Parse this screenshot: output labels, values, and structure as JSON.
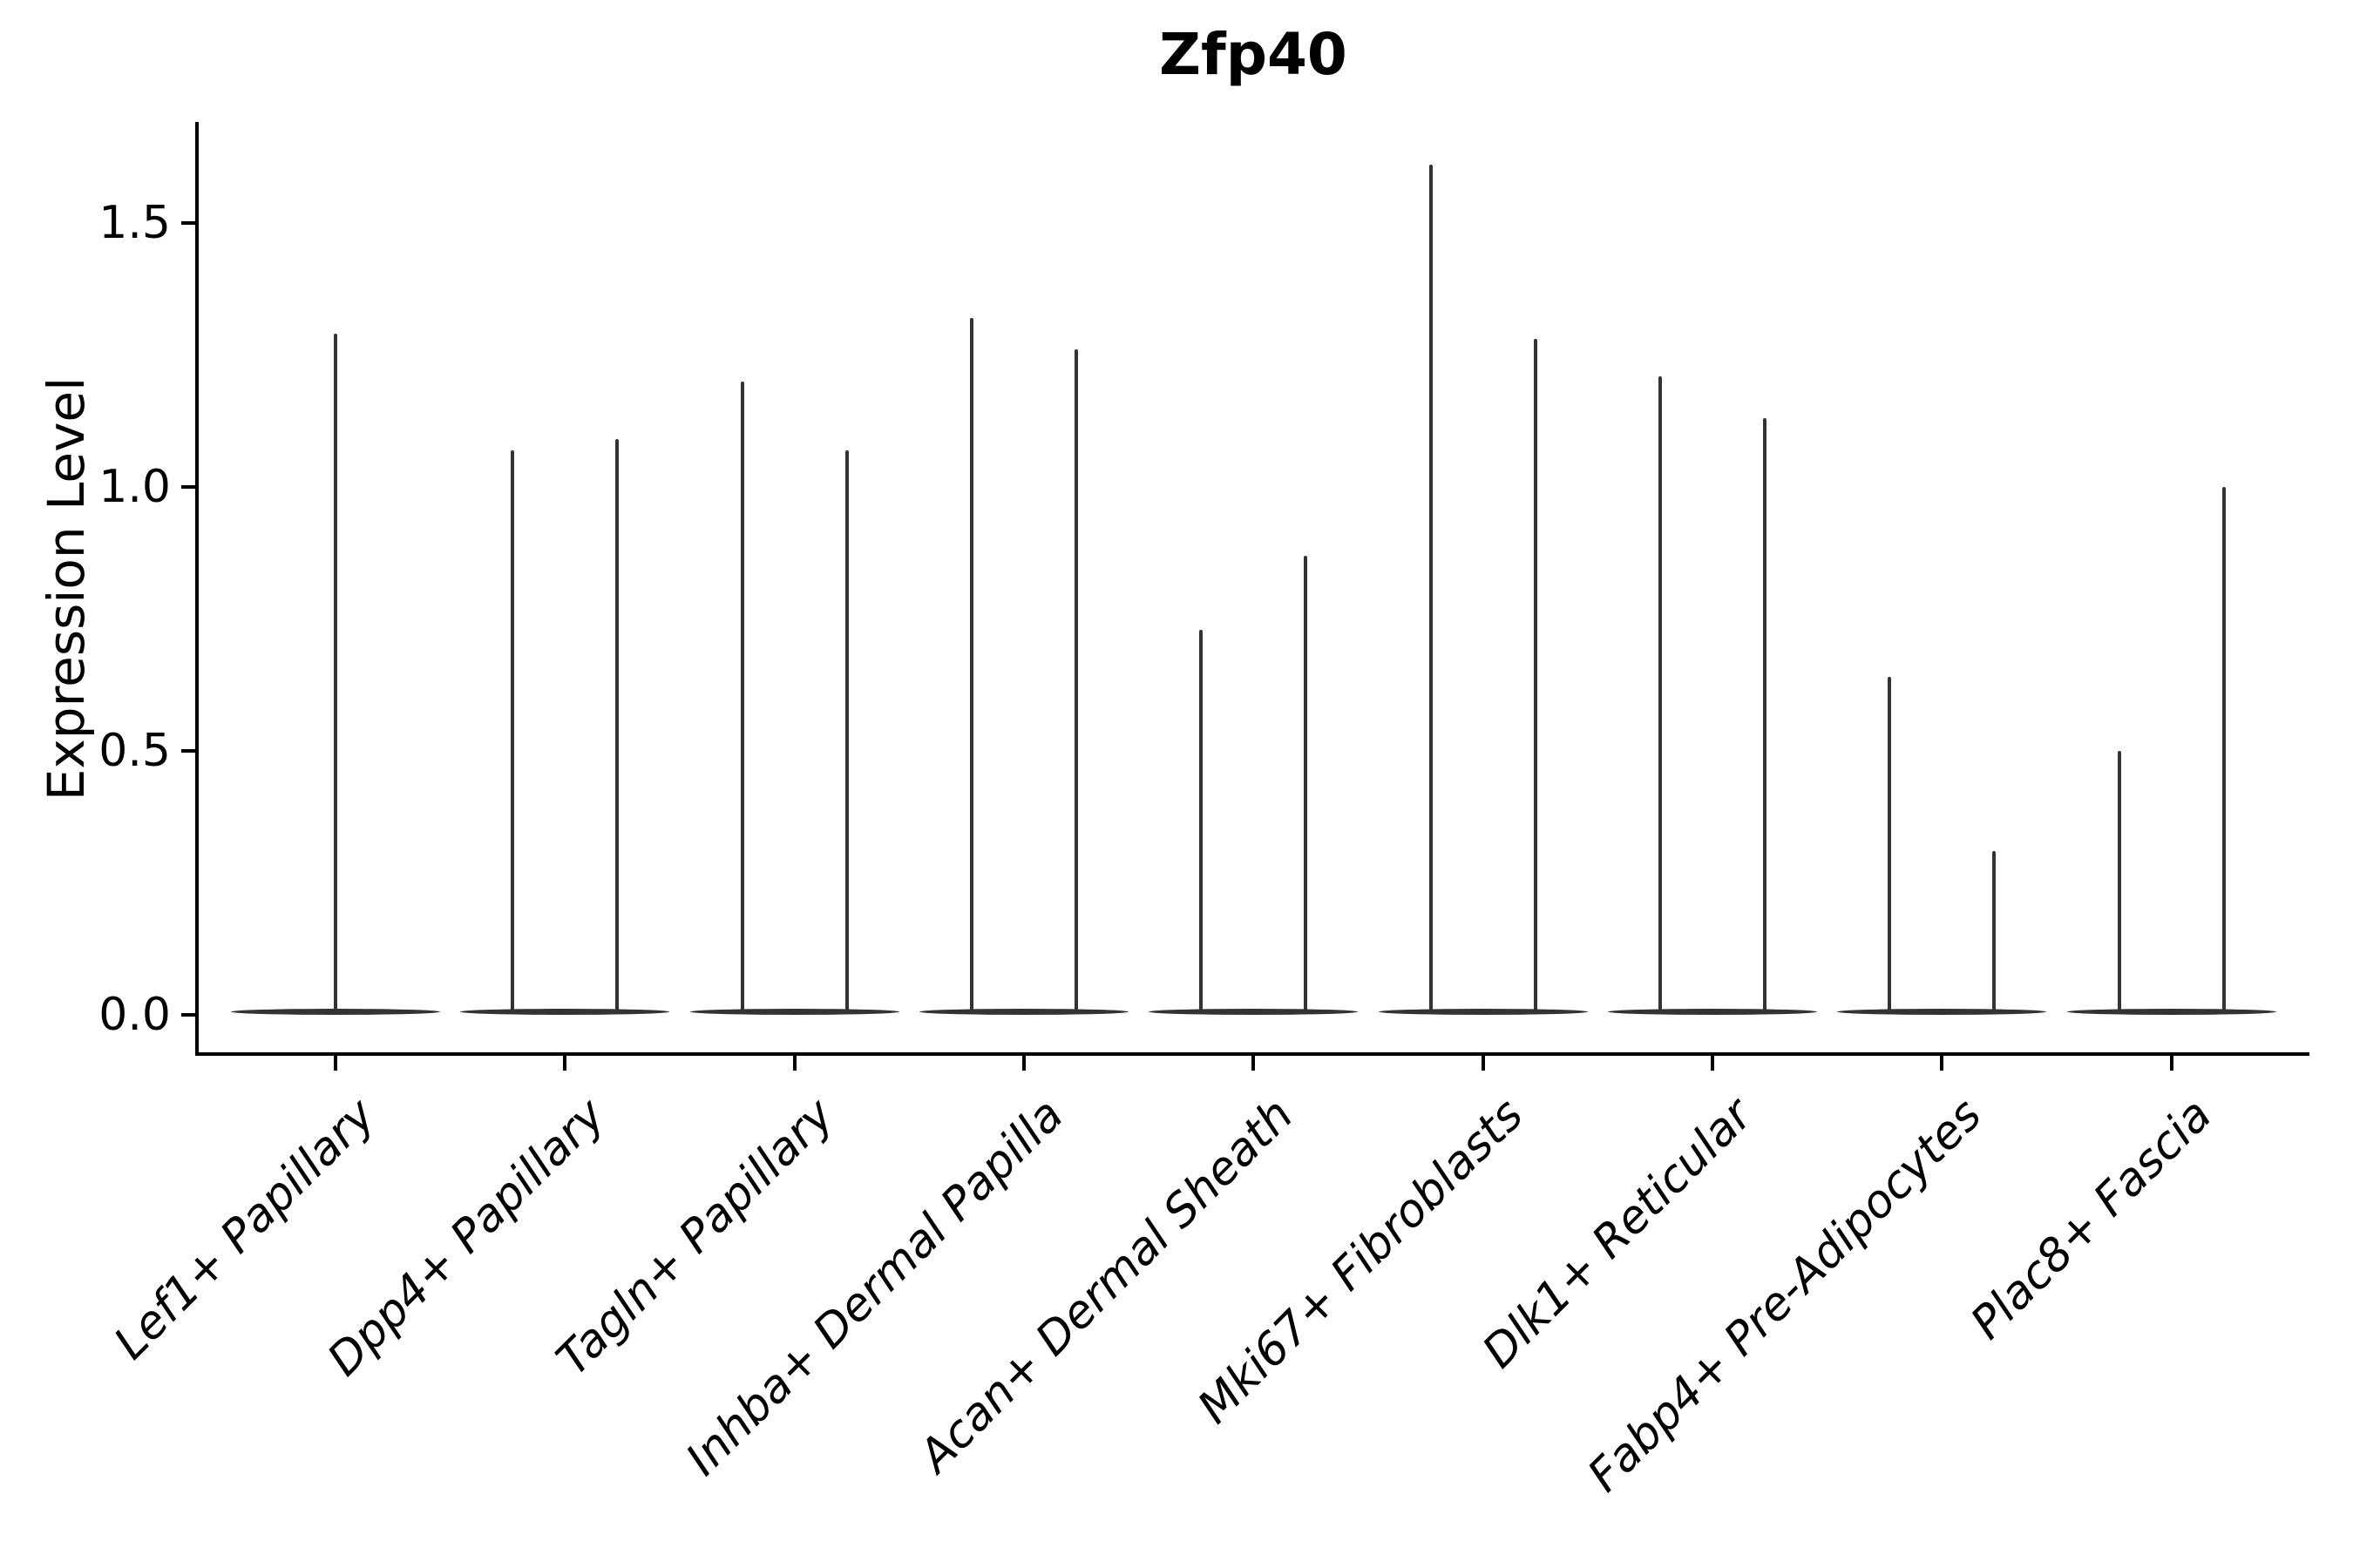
{
  "chart_data": {
    "type": "violin",
    "title": "Zfp40",
    "ylabel": "Expression Level",
    "xlabel": "",
    "ytick_labels": [
      "0.0",
      "0.5",
      "1.0",
      "1.5"
    ],
    "ytick_values": [
      0.0,
      0.5,
      1.0,
      1.5
    ],
    "ylim": [
      -0.075,
      1.69
    ],
    "grid": false,
    "legend": "none",
    "violin_color": "#333333",
    "note": "Sparse expression: each violin collapses to a flat base at 0 with a thin spike to its maximum expression value; groups after the first show two adjacent half-width violins",
    "categories": [
      "Lef1+ Papillary",
      "Dpp4+ Papillary",
      "Tagln+ Papillary",
      "Inhba+ Dermal Papilla",
      "Acan+ Dermal Sheath",
      "Mki67+ Fibroblasts",
      "Dlk1+ Reticular",
      "Fabp4+ Pre-Adipocytes",
      "Plac8+ Fascia"
    ],
    "groups": [
      {
        "label": "Lef1+ Papillary",
        "peaks": [
          1.29
        ]
      },
      {
        "label": "Dpp4+ Papillary",
        "peaks": [
          1.07,
          1.09
        ]
      },
      {
        "label": "Tagln+ Papillary",
        "peaks": [
          1.2,
          1.07
        ]
      },
      {
        "label": "Inhba+ Dermal Papilla",
        "peaks": [
          1.32,
          1.26
        ]
      },
      {
        "label": "Acan+ Dermal Sheath",
        "peaks": [
          0.73,
          0.87
        ]
      },
      {
        "label": "Mki67+ Fibroblasts",
        "peaks": [
          1.61,
          1.28
        ]
      },
      {
        "label": "Dlk1+ Reticular",
        "peaks": [
          1.21,
          1.13
        ]
      },
      {
        "label": "Fabp4+ Pre-Adipocytes",
        "peaks": [
          0.64,
          0.31
        ]
      },
      {
        "label": "Plac8+ Fascia",
        "peaks": [
          0.5,
          1.0
        ]
      }
    ]
  }
}
